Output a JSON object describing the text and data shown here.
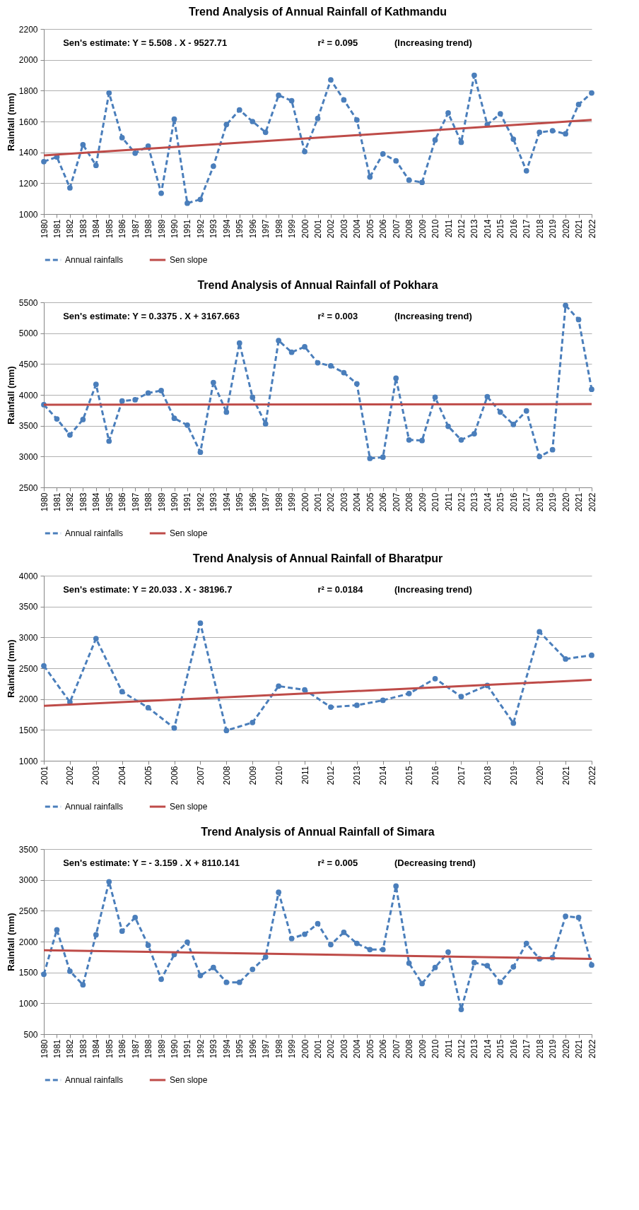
{
  "chart_data": [
    {
      "type": "line",
      "title": "Trend Analysis of Annual Rainfall of Kathmandu",
      "ylabel": "Rainfall (mm)",
      "annotations": [
        "Sen's  estimate:    Y = 5.508 . X  -  9527.71",
        "r² = 0.095",
        "(Increasing trend)"
      ],
      "x": [
        1980,
        1981,
        1982,
        1983,
        1984,
        1985,
        1986,
        1987,
        1988,
        1989,
        1990,
        1991,
        1992,
        1993,
        1994,
        1995,
        1996,
        1997,
        1998,
        1999,
        2000,
        2001,
        2002,
        2003,
        2004,
        2005,
        2006,
        2007,
        2008,
        2009,
        2010,
        2011,
        2012,
        2013,
        2014,
        2015,
        2016,
        2017,
        2018,
        2019,
        2020,
        2021,
        2022
      ],
      "series": [
        {
          "name": "Annual rainfalls",
          "color": "#4a7ebb",
          "marker": "circle",
          "line_style": "dashed",
          "values": [
            1340,
            1370,
            1170,
            1450,
            1315,
            1785,
            1495,
            1395,
            1440,
            1135,
            1615,
            1070,
            1095,
            1310,
            1580,
            1675,
            1600,
            1530,
            1770,
            1735,
            1405,
            1620,
            1870,
            1740,
            1610,
            1240,
            1390,
            1345,
            1220,
            1205,
            1480,
            1655,
            1465,
            1900,
            1580,
            1650,
            1485,
            1280,
            1530,
            1540,
            1520,
            1710,
            1785
          ]
        },
        {
          "name": "Sen slope",
          "color": "#be4b48",
          "type": "line",
          "line_style": "solid",
          "x": [
            1980,
            2022
          ],
          "values": [
            1380,
            1610
          ]
        }
      ],
      "xlim": [
        1980,
        2022
      ],
      "xticks": [
        1980,
        1981,
        1982,
        1983,
        1984,
        1985,
        1986,
        1987,
        1988,
        1989,
        1990,
        1991,
        1992,
        1993,
        1994,
        1995,
        1996,
        1997,
        1998,
        1999,
        2000,
        2001,
        2002,
        2003,
        2004,
        2005,
        2006,
        2007,
        2008,
        2009,
        2010,
        2011,
        2012,
        2013,
        2014,
        2015,
        2016,
        2017,
        2018,
        2019,
        2020,
        2021,
        2022
      ],
      "ylim": [
        1000,
        2200
      ],
      "yticks": [
        1000,
        1200,
        1400,
        1600,
        1800,
        2000,
        2200
      ],
      "grid": "y",
      "legend": "bottom"
    },
    {
      "type": "line",
      "title": "Trend Analysis of Annual Rainfall of Pokhara",
      "ylabel": "Rainfall (mm)",
      "annotations": [
        "Sen's estimate:    Y = 0.3375 . X  + 3167.663",
        "r² = 0.003",
        "(Increasing trend)"
      ],
      "x": [
        1980,
        1981,
        1982,
        1983,
        1984,
        1985,
        1986,
        1987,
        1988,
        1989,
        1990,
        1991,
        1992,
        1993,
        1994,
        1995,
        1996,
        1997,
        1998,
        1999,
        2000,
        2001,
        2002,
        2003,
        2004,
        2005,
        2006,
        2007,
        2008,
        2009,
        2010,
        2011,
        2012,
        2013,
        2014,
        2015,
        2016,
        2017,
        2018,
        2019,
        2020,
        2021,
        2022
      ],
      "series": [
        {
          "name": "Annual rainfalls",
          "color": "#4a7ebb",
          "marker": "circle",
          "line_style": "dashed",
          "values": [
            3840,
            3610,
            3350,
            3600,
            4170,
            3250,
            3900,
            3920,
            4030,
            4070,
            3620,
            3510,
            3070,
            4200,
            3720,
            4840,
            3960,
            3530,
            4880,
            4690,
            4780,
            4520,
            4470,
            4360,
            4180,
            2970,
            2990,
            4270,
            3270,
            3260,
            3960,
            3490,
            3270,
            3370,
            3970,
            3720,
            3520,
            3740,
            3000,
            3110,
            5450,
            5220,
            4090
          ]
        },
        {
          "name": "Sen slope",
          "color": "#be4b48",
          "type": "line",
          "line_style": "solid",
          "x": [
            1980,
            2022
          ],
          "values": [
            3840,
            3850
          ]
        }
      ],
      "xlim": [
        1980,
        2022
      ],
      "xticks": [
        1980,
        1981,
        1982,
        1983,
        1984,
        1985,
        1986,
        1987,
        1988,
        1989,
        1990,
        1991,
        1992,
        1993,
        1994,
        1995,
        1996,
        1997,
        1998,
        1999,
        2000,
        2001,
        2002,
        2003,
        2004,
        2005,
        2006,
        2007,
        2008,
        2009,
        2010,
        2011,
        2012,
        2013,
        2014,
        2015,
        2016,
        2017,
        2018,
        2019,
        2020,
        2021,
        2022
      ],
      "ylim": [
        2500,
        5500
      ],
      "yticks": [
        2500,
        3000,
        3500,
        4000,
        4500,
        5000,
        5500
      ],
      "grid": "y",
      "legend": "bottom"
    },
    {
      "type": "line",
      "title": "Trend Analysis of Annual Rainfall of Bharatpur",
      "ylabel": "Rainfall (mm)",
      "annotations": [
        "Sen's estimate:     Y = 20.033 . X  - 38196.7",
        "r² = 0.0184",
        "(Increasing trend)"
      ],
      "x": [
        2001,
        2002,
        2003,
        2004,
        2005,
        2006,
        2007,
        2008,
        2009,
        2010,
        2011,
        2012,
        2013,
        2014,
        2015,
        2016,
        2017,
        2018,
        2019,
        2020,
        2021,
        2022
      ],
      "series": [
        {
          "name": "Annual rainfalls",
          "color": "#4a7ebb",
          "marker": "circle",
          "line_style": "dashed",
          "values": [
            2540,
            1950,
            2980,
            2120,
            1860,
            1530,
            3230,
            1490,
            1620,
            2210,
            2150,
            1870,
            1900,
            1980,
            2090,
            2330,
            2040,
            2220,
            1610,
            3090,
            2650,
            2710
          ]
        },
        {
          "name": "Sen slope",
          "color": "#be4b48",
          "type": "line",
          "line_style": "solid",
          "x": [
            2001,
            2022
          ],
          "values": [
            1890,
            2310
          ]
        }
      ],
      "xlim": [
        2001,
        2022
      ],
      "xticks": [
        2001,
        2002,
        2003,
        2004,
        2005,
        2006,
        2007,
        2008,
        2009,
        2010,
        2011,
        2012,
        2013,
        2014,
        2015,
        2016,
        2017,
        2018,
        2019,
        2020,
        2021,
        2022
      ],
      "ylim": [
        1000,
        4000
      ],
      "yticks": [
        1000,
        1500,
        2000,
        2500,
        3000,
        3500,
        4000
      ],
      "grid": "y",
      "legend": "bottom"
    },
    {
      "type": "line",
      "title": "Trend Analysis of Annual Rainfall of Simara",
      "ylabel": "Rainfall (mm)",
      "annotations": [
        "Sen's estimate:    Y = - 3.159 . X  + 8110.141",
        "r² = 0.005",
        "(Decreasing trend)"
      ],
      "x": [
        1980,
        1981,
        1982,
        1983,
        1984,
        1985,
        1986,
        1987,
        1988,
        1989,
        1990,
        1991,
        1992,
        1993,
        1994,
        1995,
        1996,
        1997,
        1998,
        1999,
        2000,
        2001,
        2002,
        2003,
        2004,
        2005,
        2006,
        2007,
        2008,
        2009,
        2010,
        2011,
        2012,
        2013,
        2014,
        2015,
        2016,
        2017,
        2018,
        2019,
        2020,
        2021,
        2022
      ],
      "series": [
        {
          "name": "Annual rainfalls",
          "color": "#4a7ebb",
          "marker": "circle",
          "line_style": "dashed",
          "values": [
            1470,
            2190,
            1520,
            1300,
            2110,
            2970,
            2170,
            2390,
            1940,
            1390,
            1790,
            1990,
            1450,
            1580,
            1340,
            1340,
            1550,
            1750,
            2800,
            2050,
            2120,
            2290,
            1950,
            2150,
            1970,
            1870,
            1870,
            2900,
            1650,
            1320,
            1580,
            1830,
            900,
            1660,
            1610,
            1340,
            1590,
            1970,
            1720,
            1740,
            2410,
            2390,
            1620
          ]
        },
        {
          "name": "Sen slope",
          "color": "#be4b48",
          "type": "line",
          "line_style": "solid",
          "x": [
            1980,
            2022
          ],
          "values": [
            1860,
            1720
          ]
        }
      ],
      "xlim": [
        1980,
        2022
      ],
      "xticks": [
        1980,
        1981,
        1982,
        1983,
        1984,
        1985,
        1986,
        1987,
        1988,
        1989,
        1990,
        1991,
        1992,
        1993,
        1994,
        1995,
        1996,
        1997,
        1998,
        1999,
        2000,
        2001,
        2002,
        2003,
        2004,
        2005,
        2006,
        2007,
        2008,
        2009,
        2010,
        2011,
        2012,
        2013,
        2014,
        2015,
        2016,
        2017,
        2018,
        2019,
        2020,
        2021,
        2022
      ],
      "ylim": [
        500,
        3500
      ],
      "yticks": [
        500,
        1000,
        1500,
        2000,
        2500,
        3000,
        3500
      ],
      "grid": "y",
      "legend": "bottom"
    }
  ]
}
